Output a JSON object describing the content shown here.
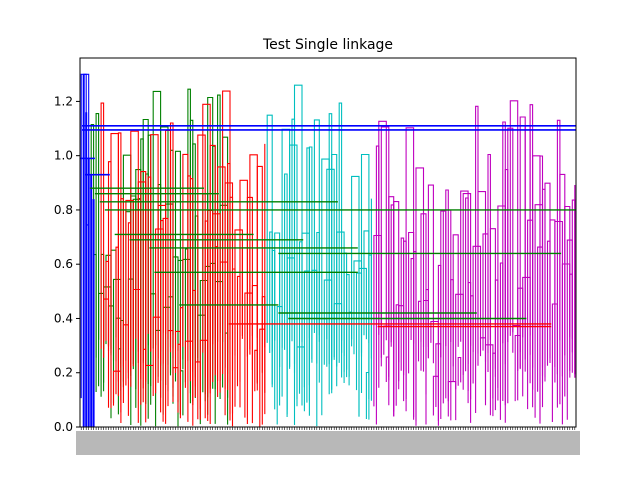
{
  "chart_data": {
    "type": "dendrogram",
    "title": "Test Single linkage",
    "xlabel": "",
    "ylabel": "",
    "ylim": [
      0.0,
      1.36
    ],
    "yticks": [
      0.0,
      0.2,
      0.4,
      0.6,
      0.8,
      1.0,
      1.2
    ],
    "ytick_labels": [
      "0.0",
      "0.2",
      "0.4",
      "0.6",
      "0.8",
      "1.0",
      "1.2"
    ],
    "leaf_count": 200,
    "grid": false,
    "legend": "none",
    "colors": {
      "cluster_blue": "#0000ff",
      "cluster_red": "#ff0000",
      "cluster_cyan": "#00bfbf",
      "cluster_magenta": "#bf00bf",
      "cluster_green": "#008000"
    },
    "clusters": [
      {
        "color": "cluster_blue",
        "leaf_range": [
          0,
          4
        ],
        "top_height": 1.3
      },
      {
        "color": "cluster_green",
        "leaf_range": [
          4,
          60
        ],
        "top_height": 1.36
      },
      {
        "color": "cluster_red",
        "leaf_range": [
          8,
          75
        ],
        "top_height": 1.36
      },
      {
        "color": "cluster_cyan",
        "leaf_range": [
          75,
          118
        ],
        "top_height": 1.36
      },
      {
        "color": "cluster_magenta",
        "leaf_range": [
          118,
          200
        ],
        "top_height": 1.36
      }
    ],
    "horizontal_merges": [
      {
        "y": 1.11,
        "x_from": 0.004,
        "x_to": 1.0,
        "color": "cluster_blue"
      },
      {
        "y": 1.095,
        "x_from": 0.004,
        "x_to": 1.0,
        "color": "cluster_blue"
      },
      {
        "y": 0.99,
        "x_from": 0.0,
        "x_to": 0.03,
        "color": "cluster_blue"
      },
      {
        "y": 0.93,
        "x_from": 0.01,
        "x_to": 0.06,
        "color": "cluster_blue"
      },
      {
        "y": 0.88,
        "x_from": 0.02,
        "x_to": 0.25,
        "color": "cluster_green"
      },
      {
        "y": 0.86,
        "x_from": 0.03,
        "x_to": 0.28,
        "color": "cluster_green"
      },
      {
        "y": 0.83,
        "x_from": 0.04,
        "x_to": 0.52,
        "color": "cluster_green"
      },
      {
        "y": 0.8,
        "x_from": 0.05,
        "x_to": 1.0,
        "color": "cluster_green"
      },
      {
        "y": 0.71,
        "x_from": 0.07,
        "x_to": 0.35,
        "color": "cluster_green"
      },
      {
        "y": 0.69,
        "x_from": 0.1,
        "x_to": 0.45,
        "color": "cluster_green"
      },
      {
        "y": 0.66,
        "x_from": 0.14,
        "x_to": 0.56,
        "color": "cluster_green"
      },
      {
        "y": 0.64,
        "x_from": 0.4,
        "x_to": 0.97,
        "color": "cluster_green"
      },
      {
        "y": 0.57,
        "x_from": 0.15,
        "x_to": 0.56,
        "color": "cluster_green"
      },
      {
        "y": 0.45,
        "x_from": 0.2,
        "x_to": 0.4,
        "color": "cluster_green"
      },
      {
        "y": 0.42,
        "x_from": 0.4,
        "x_to": 0.8,
        "color": "cluster_green"
      },
      {
        "y": 0.4,
        "x_from": 0.42,
        "x_to": 0.9,
        "color": "cluster_green"
      },
      {
        "y": 0.38,
        "x_from": 0.3,
        "x_to": 0.95,
        "color": "cluster_red"
      },
      {
        "y": 0.37,
        "x_from": 0.6,
        "x_to": 0.95,
        "color": "cluster_red"
      }
    ]
  }
}
